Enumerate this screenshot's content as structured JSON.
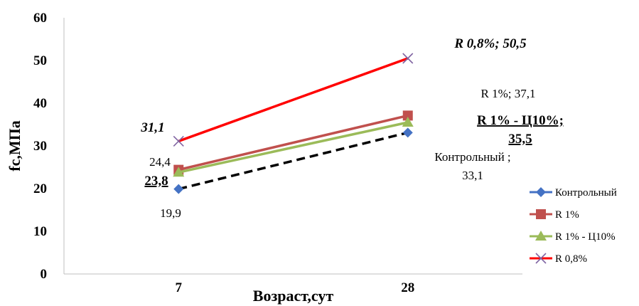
{
  "chart_data": {
    "type": "line",
    "xlabel": "Возраст,сут",
    "ylabel": "fc,МПа",
    "categories": [
      "7",
      "28"
    ],
    "ylim": [
      0,
      60
    ],
    "yticks": [
      "0",
      "10",
      "20",
      "30",
      "40",
      "50",
      "60"
    ],
    "grid": false,
    "legend_position": "right",
    "series": [
      {
        "name": "Контрольный",
        "values": [
          19.9,
          33.1
        ],
        "color": "#4472C4",
        "marker": "diamond",
        "line_color": "#000000",
        "line_style": "dashed",
        "labels": [
          "19,9",
          [
            "Контрольный ;",
            "33,1"
          ]
        ]
      },
      {
        "name": "R 1%",
        "values": [
          24.4,
          37.1
        ],
        "color": "#C0504D",
        "marker": "square",
        "line_color": "#C0504D",
        "line_style": "solid",
        "labels": [
          "24,4",
          "R 1%; 37,1"
        ]
      },
      {
        "name": "R 1%  - Ц10%",
        "values": [
          23.8,
          35.5
        ],
        "color": "#9BBB59",
        "marker": "triangle",
        "line_color": "#9BBB59",
        "line_style": "solid",
        "labels": [
          "23,8",
          [
            "R 1%  - Ц10%;",
            "35,5"
          ]
        ]
      },
      {
        "name": "R 0,8%",
        "values": [
          31.1,
          50.5
        ],
        "color": "#8064A2",
        "marker": "x",
        "line_color": "#FF0000",
        "line_style": "solid",
        "labels": [
          "31,1",
          "R 0,8%; 50,5"
        ]
      }
    ]
  }
}
